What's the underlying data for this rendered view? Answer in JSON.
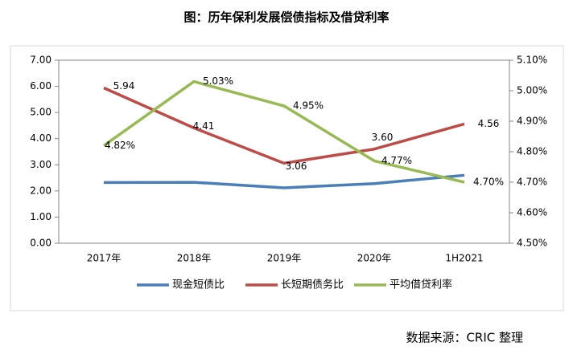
{
  "chart_data": {
    "type": "line",
    "title": "图：历年保利发展偿债指标及借贷利率",
    "source": "数据来源：CRIC 整理",
    "categories": [
      "2017年",
      "2018年",
      "2019年",
      "2020年",
      "1H2021"
    ],
    "series": [
      {
        "name": "现金短债比",
        "color": "#4a7ebb",
        "values": [
          2.32,
          2.33,
          2.12,
          2.28,
          2.6
        ]
      },
      {
        "name": "长短期债务比",
        "color": "#be4b48",
        "values": [
          5.94,
          4.41,
          3.06,
          3.6,
          4.56
        ],
        "value_labels": [
          "5.94",
          "4.41",
          "3.06",
          "3.60",
          "4.56"
        ]
      },
      {
        "name": "平均借贷利率",
        "color": "#98b954",
        "axis": "y2",
        "values": [
          4.82,
          5.03,
          4.95,
          4.77,
          4.7
        ],
        "value_labels": [
          "4.82%",
          "5.03%",
          "4.95%",
          "4.77%",
          "4.70%"
        ]
      }
    ],
    "ylim": [
      0,
      7
    ],
    "yticks": [
      {
        "value": 0,
        "label": "0.00"
      },
      {
        "value": 1,
        "label": "1.00"
      },
      {
        "value": 2,
        "label": "2.00"
      },
      {
        "value": 3,
        "label": "3.00"
      },
      {
        "value": 4,
        "label": "4.00"
      },
      {
        "value": 5,
        "label": "5.00"
      },
      {
        "value": 6,
        "label": "6.00"
      },
      {
        "value": 7,
        "label": "7.00"
      }
    ],
    "y2lim": [
      4.5,
      5.1
    ],
    "y2ticks": [
      {
        "value": 4.5,
        "label": "4.50%"
      },
      {
        "value": 4.6,
        "label": "4.60%"
      },
      {
        "value": 4.7,
        "label": "4.70%"
      },
      {
        "value": 4.8,
        "label": "4.80%"
      },
      {
        "value": 4.9,
        "label": "4.90%"
      },
      {
        "value": 5.0,
        "label": "5.00%"
      },
      {
        "value": 5.1,
        "label": "5.10%"
      }
    ],
    "legend": "bottom"
  }
}
